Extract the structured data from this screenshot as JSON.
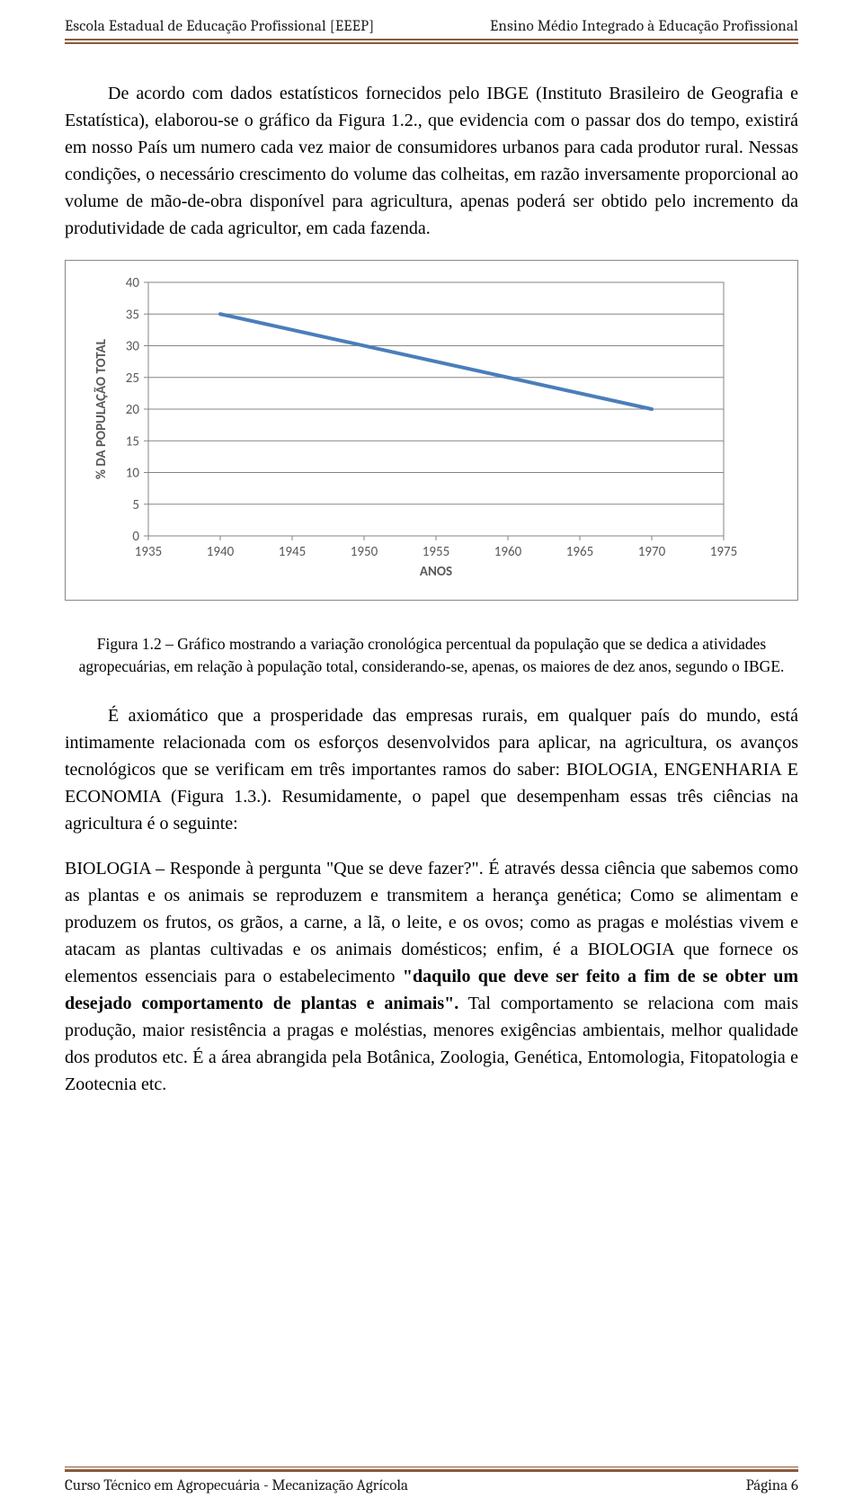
{
  "header": {
    "left": "Escola Estadual de Educação Profissional [EEEP]",
    "right": "Ensino Médio Integrado à Educação Profissional"
  },
  "paragraphs": {
    "p1": "De acordo com dados estatísticos fornecidos pelo IBGE (Instituto Brasileiro de Geografia e Estatística), elaborou-se o gráfico da Figura 1.2., que evidencia com o passar dos do tempo, existirá em nosso País um numero cada vez maior de consumidores urbanos para cada produtor rural. Nessas condições, o necessário crescimento do volume das colheitas, em razão inversamente proporcional ao volume de mão-de-obra disponível para agricultura, apenas poderá ser obtido pelo incremento da produtividade de cada agricultor, em cada fazenda.",
    "caption": "Figura 1.2 – Gráfico mostrando a variação cronológica percentual da população que se dedica a atividades agropecuárias, em relação à população total, considerando-se, apenas, os maiores de dez anos, segundo o IBGE.",
    "p2": "É axiomático que a prosperidade das empresas rurais, em qualquer país do mundo, está intimamente relacionada com os esforços desenvolvidos para aplicar, na agricultura, os avanços tecnológicos que se verificam em três importantes ramos do saber: BIOLOGIA, ENGENHARIA E ECONOMIA (Figura 1.3.). Resumidamente, o papel que desempenham essas três ciências na agricultura é o seguinte:",
    "p3a": "BIOLOGIA – Responde à pergunta \"Que se deve fazer?\". É através dessa ciência que sabemos como as plantas e os animais se reproduzem e transmitem a herança genética; Como se alimentam e produzem os frutos, os grãos, a carne, a lã, o leite, e os ovos; como as pragas e moléstias vivem e atacam as plantas cultivadas e os animais domésticos; enfim, é a BIOLOGIA que fornece os elementos essenciais para o estabelecimento ",
    "p3b": "\"daquilo que deve ser feito a fim de se obter um desejado comportamento de plantas e animais\".",
    "p3c": " Tal comportamento se relaciona com mais produção, maior resistência a pragas e moléstias, menores exigências ambientais, melhor qualidade dos produtos etc. É a área abrangida pela Botânica, Zoologia, Genética, Entomologia, Fitopatologia e Zootecnia etc."
  },
  "chart": {
    "type": "line",
    "ylabel": "% DA POPULAÇÃO TOTAL",
    "xlabel": "ANOS",
    "y_ticks": [
      0,
      5,
      10,
      15,
      20,
      25,
      30,
      35,
      40
    ],
    "x_ticks": [
      1935,
      1940,
      1945,
      1950,
      1955,
      1960,
      1965,
      1970,
      1975
    ],
    "ylim": [
      0,
      40
    ],
    "xlim": [
      1935,
      1975
    ],
    "series": [
      {
        "points": [
          [
            1940,
            35
          ],
          [
            1970,
            20
          ]
        ],
        "color": "#4a7ebb",
        "width": 4
      }
    ],
    "plot_border_color": "#868686",
    "grid_color": "#868686",
    "background_color": "#ffffff",
    "tick_fontsize": 15,
    "label_fontsize": 15
  },
  "footer": {
    "left": "Curso Técnico em Agropecuária - Mecanização Agrícola",
    "right": "Página 6"
  }
}
